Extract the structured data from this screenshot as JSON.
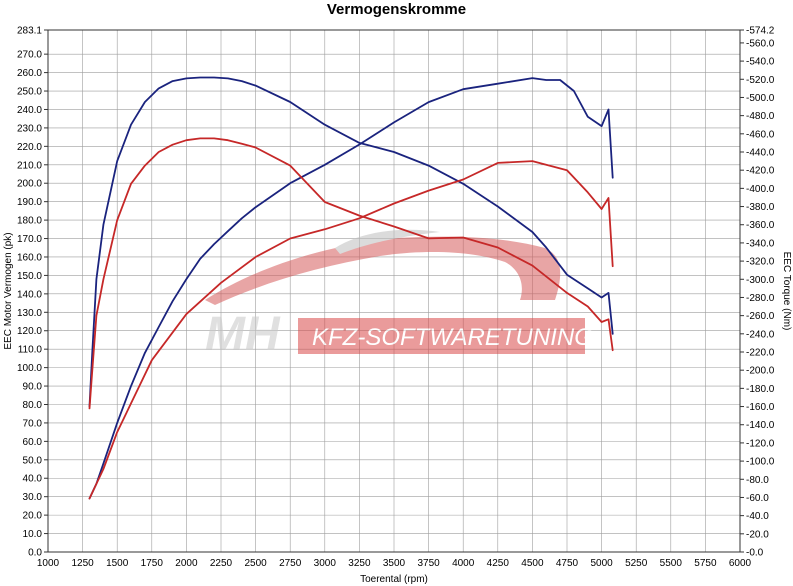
{
  "chart_data": {
    "type": "line",
    "title": "Vermogenskromme",
    "xlabel": "Toerental (rpm)",
    "ylabel_left": "EEC Motor Vermogen (pk)",
    "ylabel_right": "EEC Torque (Nm)",
    "xlim": [
      1000,
      6000
    ],
    "ylim_left": [
      0,
      283.1
    ],
    "ylim_right": [
      0,
      574.2
    ],
    "x_ticks": [
      "1000",
      "1250",
      "1500",
      "1750",
      "2000",
      "2250",
      "2500",
      "2750",
      "3000",
      "3250",
      "3500",
      "3750",
      "4000",
      "4250",
      "4500",
      "4750",
      "5000",
      "5250",
      "5500",
      "5750",
      "6000"
    ],
    "y_ticks_left": [
      "0.0",
      "10.0",
      "20.0",
      "30.0",
      "40.0",
      "50.0",
      "60.0",
      "70.0",
      "80.0",
      "90.0",
      "100.0",
      "110.0",
      "120.0",
      "130.0",
      "140.0",
      "150.0",
      "160.0",
      "170.0",
      "180.0",
      "190.0",
      "200.0",
      "210.0",
      "220.0",
      "230.0",
      "240.0",
      "250.0",
      "260.0",
      "270.0",
      "283.1"
    ],
    "y_ticks_right": [
      "0.0",
      "20.0",
      "40.0",
      "60.0",
      "80.0",
      "100.0",
      "120.0",
      "140.0",
      "160.0",
      "180.0",
      "200.0",
      "220.0",
      "240.0",
      "260.0",
      "280.0",
      "300.0",
      "320.0",
      "340.0",
      "360.0",
      "380.0",
      "400.0",
      "420.0",
      "440.0",
      "460.0",
      "480.0",
      "500.0",
      "520.0",
      "540.0",
      "560.0",
      "574.2"
    ],
    "grid": true,
    "series": [
      {
        "axis": "right",
        "color": "#1a237e",
        "x": [
          1300,
          1320,
          1350,
          1400,
          1500,
          1600,
          1700,
          1800,
          1900,
          2000,
          2100,
          2200,
          2300,
          2400,
          2500,
          2750,
          3000,
          3250,
          3500,
          3750,
          4000,
          4250,
          4500,
          4600,
          4750,
          4900,
          5000,
          5050,
          5080
        ],
        "y": [
          160,
          220,
          300,
          360,
          430,
          470,
          495,
          510,
          518,
          521,
          522,
          522,
          521,
          518,
          513,
          495,
          470,
          450,
          440,
          425,
          405,
          380,
          352,
          335,
          305,
          290,
          280,
          285,
          240
        ]
      },
      {
        "axis": "left",
        "color": "#1a237e",
        "x": [
          1300,
          1350,
          1400,
          1500,
          1600,
          1700,
          1800,
          1900,
          2000,
          2100,
          2200,
          2300,
          2400,
          2500,
          2750,
          3000,
          3250,
          3500,
          3750,
          4000,
          4250,
          4500,
          4600,
          4700,
          4800,
          4900,
          5000,
          5050,
          5080
        ],
        "y": [
          29,
          37,
          48,
          70,
          90,
          108,
          122,
          136,
          148,
          159,
          167,
          174,
          181,
          187,
          200,
          210,
          221,
          233,
          244,
          251,
          254,
          257,
          256,
          256,
          250,
          236,
          231,
          240,
          203
        ]
      },
      {
        "axis": "right",
        "color": "#c62828",
        "x": [
          1300,
          1320,
          1350,
          1400,
          1500,
          1600,
          1700,
          1800,
          1900,
          2000,
          2100,
          2200,
          2300,
          2400,
          2500,
          2750,
          3000,
          3250,
          3500,
          3750,
          4000,
          4250,
          4500,
          4750,
          4900,
          5000,
          5050,
          5080
        ],
        "y": [
          158,
          200,
          260,
          300,
          365,
          405,
          425,
          440,
          448,
          453,
          455,
          455,
          453,
          449,
          445,
          425,
          385,
          370,
          358,
          345,
          346,
          335,
          315,
          285,
          270,
          253,
          256,
          222
        ]
      },
      {
        "axis": "left",
        "color": "#c62828",
        "x": [
          1300,
          1400,
          1500,
          1750,
          2000,
          2250,
          2500,
          2750,
          3000,
          3250,
          3500,
          3750,
          4000,
          4250,
          4500,
          4750,
          4900,
          5000,
          5050,
          5080
        ],
        "y": [
          29,
          45,
          65,
          104,
          129,
          146,
          160,
          170,
          175,
          181,
          189,
          196,
          202,
          211,
          212,
          207,
          195,
          186,
          192,
          155
        ]
      }
    ]
  },
  "watermark": {
    "brand_left": "MH",
    "brand_right": "KFZ-SOFTWARETUNING"
  }
}
